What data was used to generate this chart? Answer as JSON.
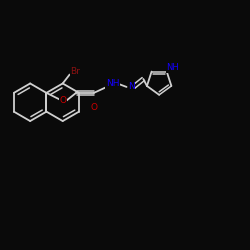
{
  "background_color": "#0a0a0a",
  "bond_color": "#1a1a1a",
  "bond_draw_color": "#111111",
  "atom_colors": {
    "N": "#1400ff",
    "O": "#cc0000",
    "Br": "#8B1111",
    "C": "#111111"
  },
  "figsize": [
    2.5,
    2.5
  ],
  "dpi": 100
}
